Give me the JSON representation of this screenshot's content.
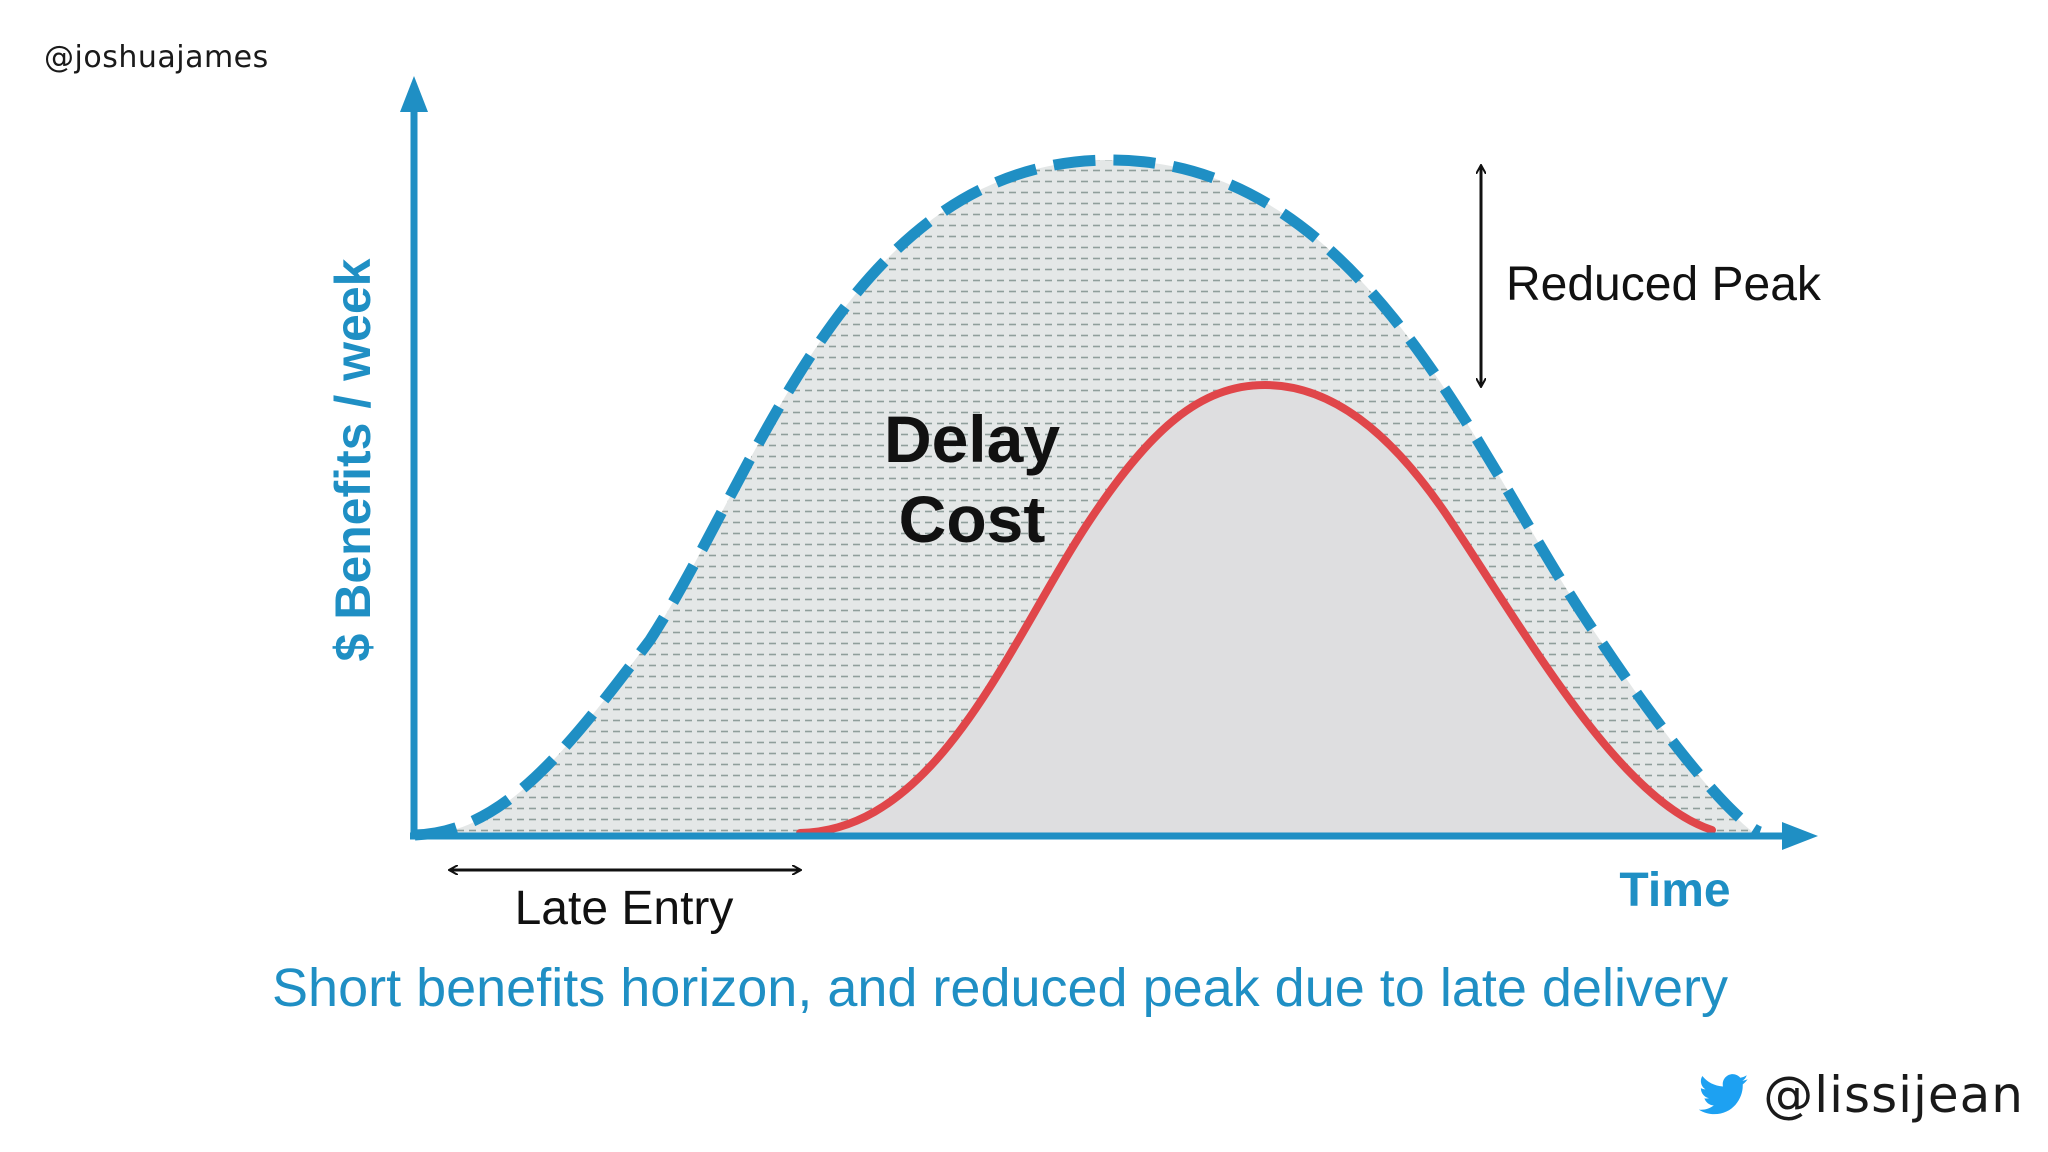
{
  "credits": {
    "top_handle": "@joshuajames",
    "bottom_handle": "@lissijean",
    "bottom_icon": "twitter-bird-icon"
  },
  "diagram": {
    "y_axis_label": "$ Benefits / week",
    "x_axis_label": "Time",
    "area_label_line1": "Delay",
    "area_label_line2": "Cost",
    "reduced_peak_label": "Reduced Peak",
    "late_entry_label": "Late Entry",
    "caption": "Short benefits horizon, and reduced peak due to late delivery"
  },
  "colors": {
    "axis_blue": "#1f8fc4",
    "caption_blue": "#1f8fc4",
    "actual_curve_red": "#e0464a",
    "potential_curve_blue": "#1f8fc4",
    "delay_area_fill": "#e3e6e6",
    "delivered_area_fill": "#dedee0",
    "twitter_blue": "#1da1f2"
  }
}
